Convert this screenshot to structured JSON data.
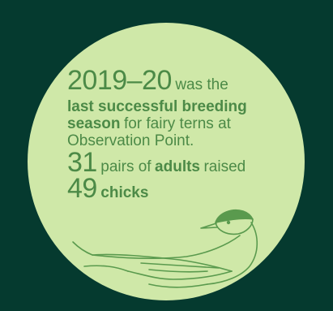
{
  "stat": {
    "years": "2019–20",
    "years_suffix": "was the",
    "line2_bold": "last successful breeding",
    "line3_bold": "season",
    "line3_rest": "for fairy terns at",
    "line4": "Observation Point.",
    "pairs_number": "31",
    "pairs_text": "pairs of",
    "pairs_bold": "adults",
    "pairs_suffix": "raised",
    "chicks_number": "49",
    "chicks_bold": "chicks"
  },
  "colors": {
    "background": "#053a2f",
    "circle": "#cfe8a8",
    "text": "#4c8a47"
  },
  "icons": [
    "fairy-tern-illustration"
  ]
}
